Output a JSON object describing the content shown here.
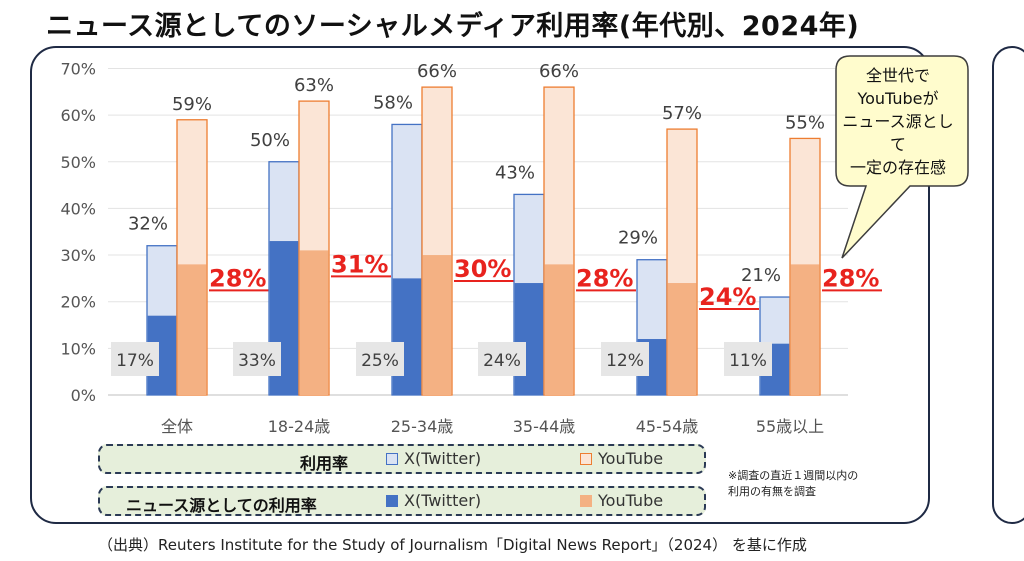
{
  "title": "ニュース源としてのソーシャルメディア利用率(年代別、2024年)",
  "callout": [
    "全世代で",
    "YouTubeが",
    "ニュース源として",
    "一定の存在感"
  ],
  "legend": {
    "row1_label": "利用率",
    "row2_label": "ニュース源としての利用率",
    "x_label": "X(Twitter)",
    "youtube_label": "YouTube"
  },
  "note": [
    "※調査の直近１週間以内の",
    "利用の有無を調査"
  ],
  "source": "（出典）Reuters Institute for the Study of Journalism「Digital News Report」（2024） を基に作成",
  "colors": {
    "x_usage": "#dae3f3",
    "x_news": "#4472c4",
    "yt_usage": "#fbe5d6",
    "yt_news": "#f4b183",
    "yt_usage_border": "#ed7d31",
    "yt_news_label": "#e8231e",
    "panel_border": "#1f2a44",
    "legend_bg": "#e6efdb"
  },
  "chart_data": {
    "type": "bar",
    "categories": [
      "全体",
      "18-24歳",
      "25-34歳",
      "35-44歳",
      "45-54歳",
      "55歳以上"
    ],
    "ylim": [
      0,
      70
    ],
    "yticks": [
      "0%",
      "10%",
      "20%",
      "30%",
      "40%",
      "50%",
      "60%",
      "70%"
    ],
    "series": [
      {
        "name": "X(Twitter) 利用率",
        "values": [
          32,
          50,
          58,
          43,
          29,
          21
        ],
        "labels": [
          "32%",
          "50%",
          "58%",
          "43%",
          "29%",
          "21%"
        ]
      },
      {
        "name": "YouTube 利用率",
        "values": [
          59,
          63,
          66,
          66,
          57,
          55
        ],
        "labels": [
          "59%",
          "63%",
          "66%",
          "66%",
          "57%",
          "55%"
        ]
      },
      {
        "name": "X(Twitter) ニュース源としての利用率",
        "values": [
          17,
          33,
          25,
          24,
          12,
          11
        ],
        "labels": [
          "17%",
          "33%",
          "25%",
          "24%",
          "12%",
          "11%"
        ]
      },
      {
        "name": "YouTube ニュース源としての利用率",
        "values": [
          28,
          31,
          30,
          28,
          24,
          28
        ],
        "labels": [
          "28%",
          "31%",
          "30%",
          "28%",
          "24%",
          "28%"
        ]
      }
    ]
  }
}
